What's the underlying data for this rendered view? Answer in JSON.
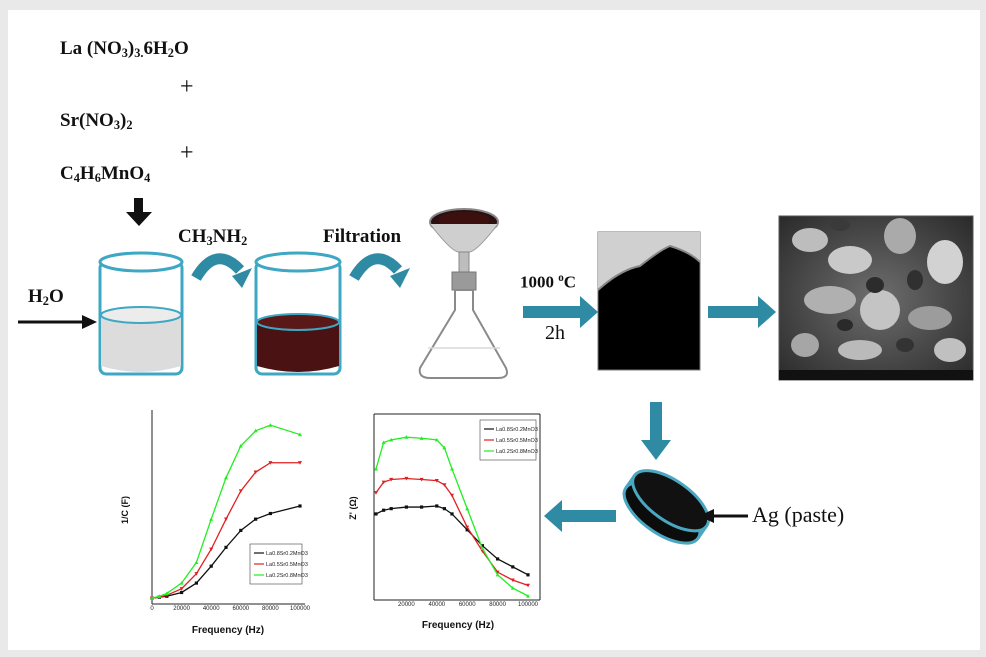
{
  "reactants": {
    "r1": {
      "a": "La (NO",
      "b": "3",
      "c": ")",
      "d": "3.",
      "e": "6H",
      "f": "2",
      "g": "O"
    },
    "plus1": "+",
    "r2": {
      "a": "Sr(NO",
      "b": "3",
      "c": ")",
      "d": "2"
    },
    "plus2": "+",
    "r3": {
      "a": "C",
      "b": "4",
      "c": "H",
      "d": "6",
      "e": "MnO",
      "f": "4"
    }
  },
  "labels": {
    "water": {
      "a": "H",
      "b": "2",
      "c": "O"
    },
    "methylamine": {
      "a": "CH",
      "b": "3",
      "c": "NH",
      "d": "2"
    },
    "filtration": "Filtration",
    "temperature": {
      "a": "1000 ",
      "b": "o",
      "c": "C"
    },
    "time": "2h",
    "silver": "Ag (paste)"
  },
  "colors": {
    "arrow_teal": "#2f8aa3",
    "beaker_outline": "#3ea7c3",
    "solution_dark": "#4a1212",
    "series_black": "#111111",
    "series_red": "#e02020",
    "series_green": "#22ee22"
  },
  "chart_data": [
    {
      "type": "line",
      "xlabel": "Frequency (Hz)",
      "ylabel": "1/C (F)",
      "x": [
        0,
        5000,
        10000,
        20000,
        30000,
        40000,
        50000,
        60000,
        70000,
        80000,
        100000
      ],
      "xticks": [
        "0",
        "20000",
        "40000",
        "60000",
        "80000",
        "100000"
      ],
      "xlim": [
        0,
        100000
      ],
      "ylim": [
        0,
        10
      ],
      "series": [
        {
          "name": "La0.8Sr0.2MnO3",
          "values": [
            0.1,
            0.15,
            0.2,
            0.4,
            0.9,
            1.8,
            2.8,
            3.7,
            4.3,
            4.6,
            5.0
          ]
        },
        {
          "name": "La0.5Sr0.5MnO3",
          "values": [
            0.1,
            0.15,
            0.25,
            0.6,
            1.4,
            2.7,
            4.3,
            5.8,
            6.8,
            7.3,
            7.3
          ]
        },
        {
          "name": "La0.2Sr0.8MnO3",
          "values": [
            0.1,
            0.2,
            0.35,
            0.9,
            2.0,
            4.3,
            6.5,
            8.2,
            9.0,
            9.3,
            8.8
          ]
        }
      ],
      "legend": "bottom-right"
    },
    {
      "type": "line",
      "xlabel": "Frequency (Hz)",
      "ylabel": "Z' (Ω)",
      "x": [
        0,
        5000,
        10000,
        20000,
        30000,
        40000,
        45000,
        50000,
        60000,
        70000,
        80000,
        90000,
        100000
      ],
      "xticks": [
        "20000",
        "40000",
        "60000",
        "80000",
        "100000"
      ],
      "xlim": [
        0,
        100000
      ],
      "ylim": [
        -6,
        28
      ],
      "series": [
        {
          "name": "La0.8Sr0.2MnO3",
          "values": [
            9.5,
            10.2,
            10.5,
            10.8,
            10.8,
            11.0,
            10.5,
            9.5,
            6.5,
            3.5,
            1.0,
            -0.5,
            -2.0
          ]
        },
        {
          "name": "La0.5Sr0.5MnO3",
          "values": [
            13.5,
            15.5,
            16.0,
            16.2,
            16.0,
            15.8,
            15.0,
            13.0,
            7.0,
            2.5,
            -1.5,
            -3.0,
            -4.0
          ]
        },
        {
          "name": "La0.2Sr0.8MnO3",
          "values": [
            18.0,
            23.0,
            23.5,
            24.0,
            23.8,
            23.5,
            22.0,
            18.0,
            10.5,
            3.0,
            -2.0,
            -4.5,
            -6.0
          ]
        }
      ],
      "legend": "top-right"
    }
  ]
}
